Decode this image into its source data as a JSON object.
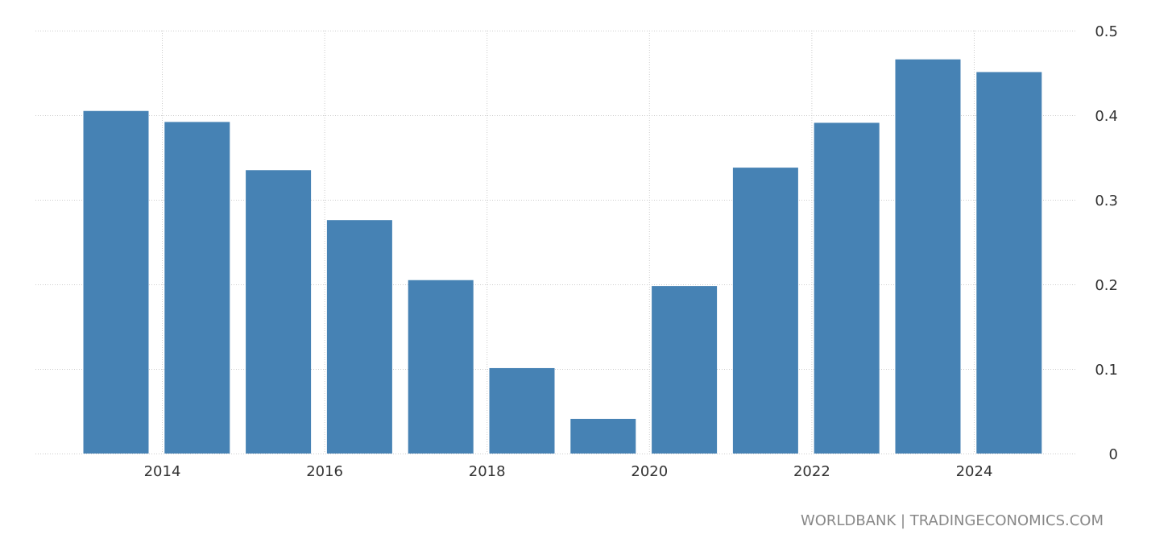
{
  "chart_data": {
    "type": "bar",
    "categories": [
      "2013",
      "2014",
      "2015",
      "2016",
      "2017",
      "2018",
      "2019",
      "2020",
      "2021",
      "2022",
      "2023",
      "2024"
    ],
    "values": [
      0.405,
      0.392,
      0.335,
      0.276,
      0.205,
      0.101,
      0.041,
      0.198,
      0.338,
      0.391,
      0.466,
      0.451
    ],
    "x_tick_labels": [
      "2014",
      "2016",
      "2018",
      "2020",
      "2022",
      "2024"
    ],
    "y_tick_labels": [
      "0",
      "0.1",
      "0.2",
      "0.3",
      "0.4",
      "0.5"
    ],
    "ylim": [
      0,
      0.5
    ],
    "y_axis_side": "right",
    "grid": true,
    "bar_color": "#4682b4",
    "title": "",
    "xlabel": "",
    "ylabel": ""
  },
  "footer": {
    "source": "WORLDBANK | TRADINGECONOMICS.COM"
  }
}
